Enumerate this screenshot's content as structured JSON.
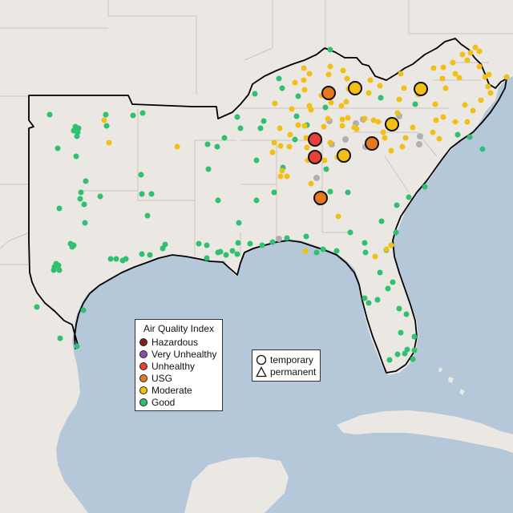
{
  "legend": {
    "title": "Air Quality Index",
    "categories": [
      {
        "label": "Hazardous",
        "color": "#7e2217"
      },
      {
        "label": "Very Unhealthy",
        "color": "#8c4fb0"
      },
      {
        "label": "Unhealthy",
        "color": "#e8403a"
      },
      {
        "label": "USG",
        "color": "#e6781e"
      },
      {
        "label": "Moderate",
        "color": "#f2c015"
      },
      {
        "label": "Good",
        "color": "#2fc070"
      }
    ]
  },
  "shape_legend": {
    "temporary": "temporary",
    "permanent": "permanent"
  },
  "colors": {
    "water": "#b4c8da",
    "land": "#ebe7e3",
    "border": "#000000",
    "unknown": "#b0b0b0"
  },
  "map_features": [
    "ocean",
    "land",
    "state-borders",
    "region-outline"
  ]
}
